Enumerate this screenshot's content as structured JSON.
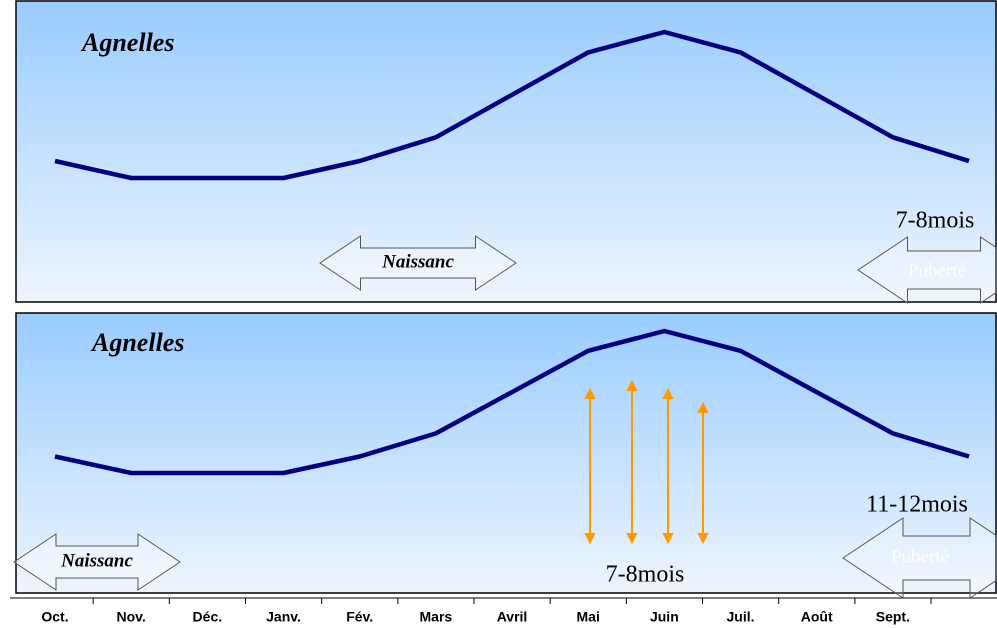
{
  "chart_data": [
    {
      "type": "line",
      "title": "Agnelles",
      "color": "#000080",
      "values": [
        10,
        0,
        0,
        0,
        10,
        24,
        49,
        74,
        86,
        74,
        49,
        24,
        10
      ],
      "annotations": [
        "Naissanc",
        "7-8mois",
        "Puberté"
      ]
    },
    {
      "type": "line",
      "title": "Agnelles",
      "color": "#000080",
      "categories": [
        "Oct.",
        "Nov.",
        "Déc.",
        "Janv.",
        "Fév.",
        "Mars",
        "Avril",
        "Mai",
        "Juin",
        "Juil.",
        "Août",
        "Sept.",
        null
      ],
      "values": [
        10,
        0,
        0,
        0,
        10,
        24,
        49,
        74,
        86,
        74,
        49,
        24,
        10
      ],
      "annotations": [
        "Naissanc",
        "11-12mois",
        "Puberté",
        "7-8mois"
      ]
    }
  ]
}
